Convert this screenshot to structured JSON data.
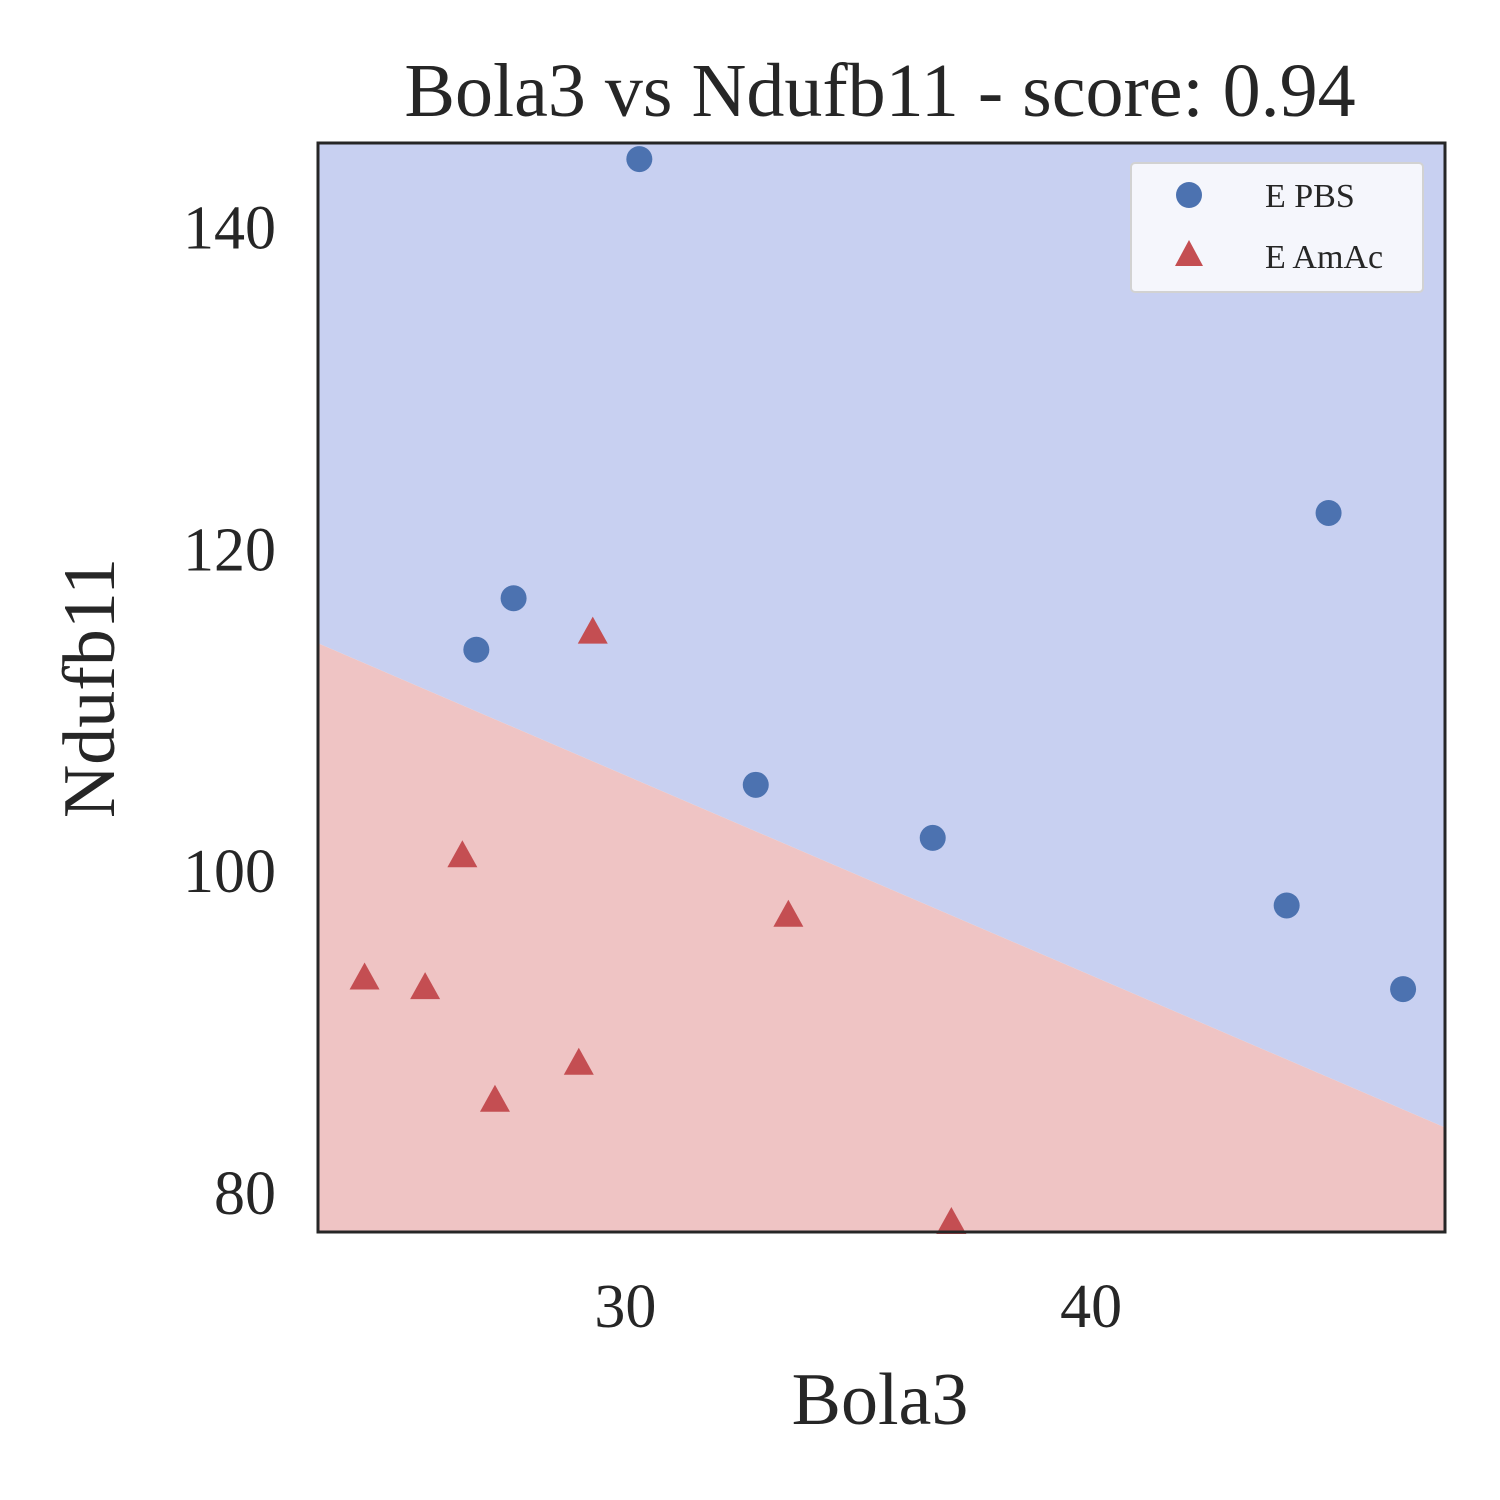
{
  "chart_data": {
    "type": "scatter",
    "title": "Bola3 vs Ndufb11 - score: 0.94",
    "xlabel": "Bola3",
    "ylabel": "Ndufb11",
    "xlim": [
      23.4,
      47.6
    ],
    "ylim": [
      77.5,
      145.2
    ],
    "xticks": [
      30,
      40
    ],
    "yticks": [
      80,
      100,
      120,
      140
    ],
    "grid": false,
    "legend_position": "top-right",
    "decision_boundary": {
      "points": [
        [
          23.4,
          114.1
        ],
        [
          47.6,
          84.0
        ]
      ],
      "upper_class": "E PBS",
      "lower_class": "E AmAc",
      "upper_color": "#c8d0f1",
      "lower_color": "#efc4c4"
    },
    "series": [
      {
        "name": "E PBS",
        "marker": "circle",
        "color": "#4c72b0",
        "points": [
          [
            30.3,
            144.2
          ],
          [
            27.6,
            116.9
          ],
          [
            26.8,
            113.7
          ],
          [
            32.8,
            105.3
          ],
          [
            36.6,
            102.0
          ],
          [
            44.2,
            97.8
          ],
          [
            45.1,
            122.2
          ],
          [
            46.7,
            92.6
          ]
        ]
      },
      {
        "name": "E AmAc",
        "marker": "triangle",
        "color": "#c44e52",
        "points": [
          [
            29.3,
            114.7
          ],
          [
            26.5,
            100.8
          ],
          [
            33.5,
            97.1
          ],
          [
            24.4,
            93.2
          ],
          [
            25.7,
            92.6
          ],
          [
            29.0,
            87.9
          ],
          [
            27.2,
            85.6
          ],
          [
            37.0,
            78.0
          ]
        ]
      }
    ]
  }
}
